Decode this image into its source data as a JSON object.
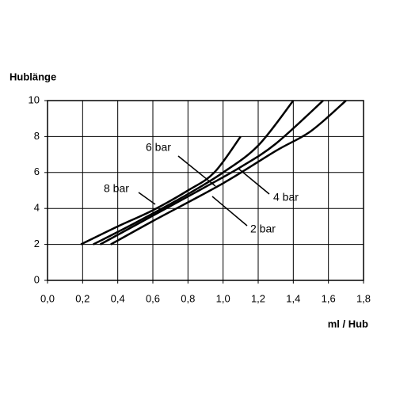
{
  "chart_data": {
    "type": "line",
    "y_label": "Hublänge",
    "x_label": "ml / Hub",
    "series": [
      {
        "name": "8 bar",
        "color": "#000000",
        "x": [
          0.19,
          0.4,
          0.6,
          0.8,
          0.95,
          1.1
        ],
        "values": [
          2,
          3.0,
          3.9,
          5.0,
          6.0,
          8.0
        ]
      },
      {
        "name": "6 bar",
        "color": "#000000",
        "x": [
          0.26,
          0.5,
          0.8,
          1.0,
          1.2,
          1.4
        ],
        "values": [
          2,
          3.2,
          4.8,
          6.0,
          7.5,
          10
        ]
      },
      {
        "name": "4 bar",
        "color": "#000000",
        "x": [
          0.3,
          0.6,
          0.9,
          1.1,
          1.3,
          1.57
        ],
        "values": [
          2,
          3.6,
          5.2,
          6.3,
          7.6,
          10
        ]
      },
      {
        "name": "2 bar",
        "color": "#000000",
        "x": [
          0.36,
          0.6,
          1.0,
          1.3,
          1.5,
          1.7
        ],
        "values": [
          2,
          3.3,
          5.4,
          7.2,
          8.3,
          10
        ]
      }
    ],
    "xlim": [
      0,
      1.8
    ],
    "ylim": [
      0,
      10
    ],
    "xticks": [
      {
        "value": 0,
        "label": "0,0"
      },
      {
        "value": 0.2,
        "label": "0,2"
      },
      {
        "value": 0.4,
        "label": "0,4"
      },
      {
        "value": 0.6,
        "label": "0,6"
      },
      {
        "value": 0.8,
        "label": "0,8"
      },
      {
        "value": 1.0,
        "label": "1,0"
      },
      {
        "value": 1.2,
        "label": "1,2"
      },
      {
        "value": 1.4,
        "label": "1,4"
      },
      {
        "value": 1.6,
        "label": "1,6"
      },
      {
        "value": 1.8,
        "label": "1,8"
      }
    ],
    "yticks": [
      0,
      2,
      4,
      6,
      8,
      10
    ],
    "grid": true
  }
}
